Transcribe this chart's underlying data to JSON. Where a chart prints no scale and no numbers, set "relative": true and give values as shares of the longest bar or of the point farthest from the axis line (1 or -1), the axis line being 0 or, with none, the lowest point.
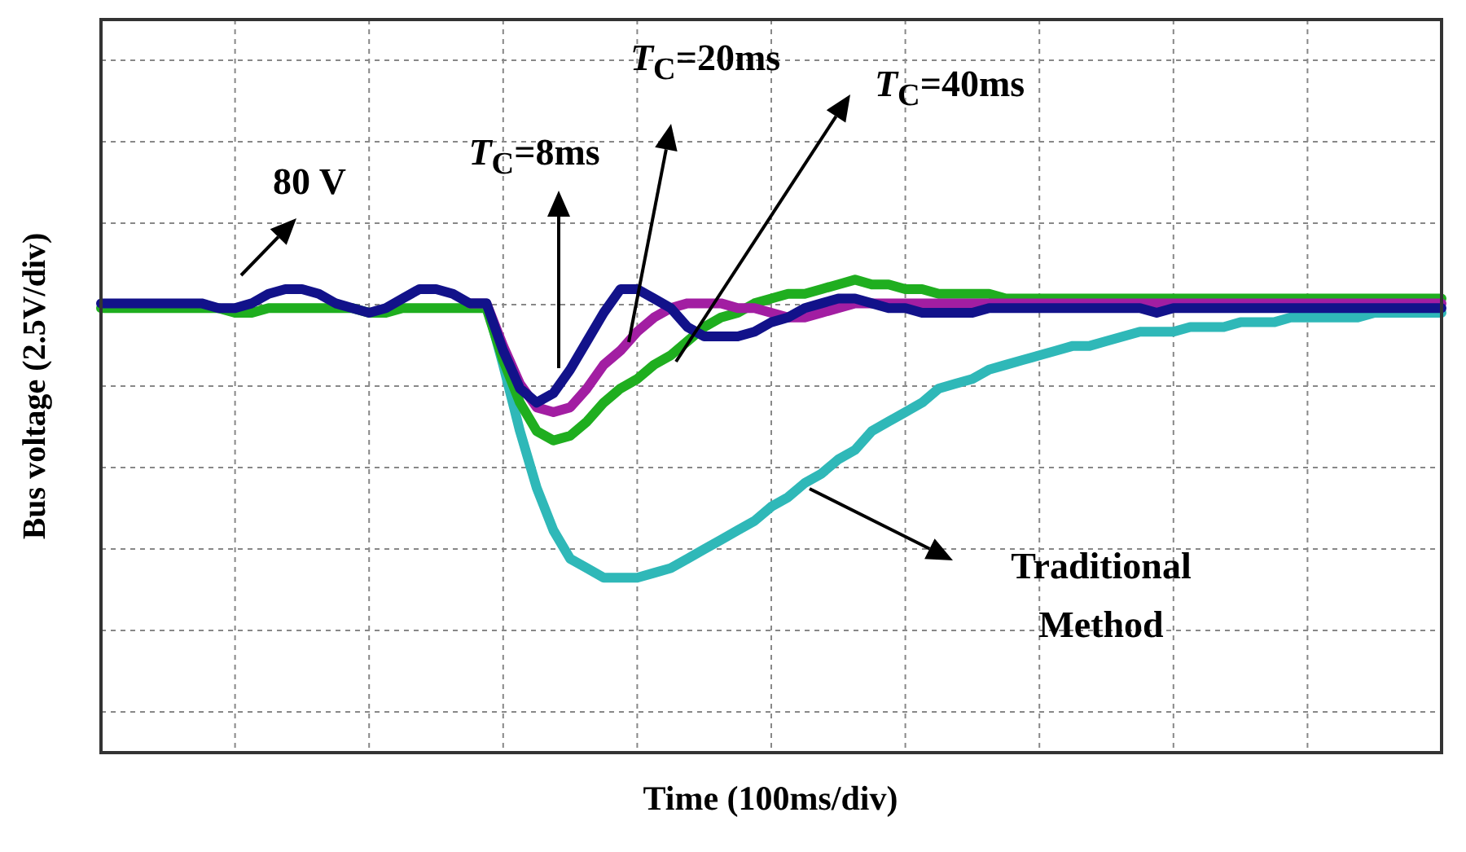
{
  "chart_data": {
    "type": "line",
    "relative": true,
    "grid": true,
    "legend": false,
    "tick_labels": false,
    "line_style": "solid",
    "marker": "none",
    "xlabel": "Time (100ms/div)",
    "ylabel": "Bus voltage (2.5V/div)",
    "categories": [
      null,
      null,
      null,
      null,
      null,
      null,
      null,
      null,
      null,
      null,
      null,
      null,
      null,
      null,
      null,
      null,
      null,
      null,
      null,
      null,
      null,
      null,
      null,
      null,
      null,
      null,
      null,
      null,
      null,
      null,
      null,
      null,
      null,
      null,
      null,
      null,
      null,
      null,
      null,
      null,
      null,
      null,
      null,
      null,
      null,
      null,
      null,
      null,
      null,
      null,
      null,
      null,
      null,
      null,
      null,
      null,
      null,
      null,
      null,
      null,
      null,
      null,
      null,
      null,
      null,
      null,
      null,
      null,
      null,
      null,
      null,
      null,
      null,
      null,
      null,
      null,
      null,
      null,
      null,
      null,
      null
    ],
    "series": [
      {
        "color": "#12128a",
        "values": [
          0.95,
          0.95,
          0.95,
          0.95,
          0.95,
          0.95,
          0.95,
          0.94,
          0.94,
          0.95,
          0.97,
          0.98,
          0.98,
          0.97,
          0.95,
          0.94,
          0.93,
          0.94,
          0.96,
          0.98,
          0.98,
          0.97,
          0.95,
          0.95,
          0.85,
          0.77,
          0.74,
          0.76,
          0.81,
          0.87,
          0.93,
          0.98,
          0.98,
          0.96,
          0.94,
          0.9,
          0.88,
          0.88,
          0.88,
          0.89,
          0.91,
          0.92,
          0.94,
          0.95,
          0.96,
          0.96,
          0.95,
          0.94,
          0.94,
          0.93,
          0.93,
          0.93,
          0.93,
          0.94,
          0.94,
          0.94,
          0.94,
          0.94,
          0.94,
          0.94,
          0.94,
          0.94,
          0.94,
          0.93,
          0.94,
          0.94,
          0.94,
          0.94,
          0.94,
          0.94,
          0.94,
          0.94,
          0.94,
          0.94,
          0.94,
          0.94,
          0.94,
          0.94,
          0.94,
          0.94,
          0.94
        ]
      },
      {
        "color": "#a21ea2",
        "values": [
          null,
          null,
          null,
          null,
          null,
          null,
          null,
          null,
          null,
          null,
          null,
          null,
          null,
          null,
          null,
          null,
          null,
          null,
          null,
          null,
          null,
          null,
          0.95,
          0.95,
          0.86,
          0.78,
          0.73,
          0.72,
          0.73,
          0.77,
          0.82,
          0.85,
          0.89,
          0.92,
          0.94,
          0.95,
          0.95,
          0.95,
          0.94,
          0.94,
          0.93,
          0.92,
          0.92,
          0.93,
          0.94,
          0.95,
          0.95,
          0.95,
          0.95,
          0.95,
          0.95,
          0.95,
          0.95,
          0.95,
          0.95,
          0.95,
          0.95,
          0.95,
          0.95,
          0.95,
          0.95,
          0.95,
          0.95,
          0.95,
          0.95,
          0.95,
          0.95,
          0.95,
          0.95,
          0.95,
          0.95,
          0.95,
          0.95,
          0.95,
          0.95,
          0.95,
          0.95,
          0.95,
          0.95,
          0.95,
          0.95
        ]
      },
      {
        "color": "#1fae1f",
        "values": [
          0.94,
          0.94,
          0.94,
          0.94,
          0.94,
          0.94,
          0.94,
          0.94,
          0.93,
          0.93,
          0.94,
          0.94,
          0.94,
          0.94,
          0.94,
          0.94,
          0.93,
          0.93,
          0.94,
          0.94,
          0.94,
          0.94,
          0.94,
          0.94,
          0.83,
          0.74,
          0.68,
          0.66,
          0.67,
          0.7,
          0.74,
          0.77,
          0.79,
          0.82,
          0.84,
          0.87,
          0.9,
          0.92,
          0.93,
          0.95,
          0.96,
          0.97,
          0.97,
          0.98,
          0.99,
          1.0,
          0.99,
          0.99,
          0.98,
          0.98,
          0.97,
          0.97,
          0.97,
          0.97,
          0.96,
          0.96,
          0.96,
          0.96,
          0.96,
          0.96,
          0.96,
          0.96,
          0.96,
          0.96,
          0.96,
          0.96,
          0.96,
          0.96,
          0.96,
          0.96,
          0.96,
          0.96,
          0.96,
          0.96,
          0.96,
          0.96,
          0.96,
          0.96,
          0.96,
          0.96,
          0.96
        ]
      },
      {
        "color": "#2fb8b8",
        "values": [
          null,
          null,
          null,
          null,
          null,
          null,
          null,
          null,
          null,
          null,
          null,
          null,
          null,
          null,
          null,
          null,
          null,
          null,
          null,
          null,
          null,
          null,
          0.95,
          0.95,
          0.82,
          0.68,
          0.56,
          0.47,
          0.41,
          0.39,
          0.37,
          0.37,
          0.37,
          0.38,
          0.39,
          0.41,
          0.43,
          0.45,
          0.47,
          0.49,
          0.52,
          0.54,
          0.57,
          0.59,
          0.62,
          0.64,
          0.68,
          0.7,
          0.72,
          0.74,
          0.77,
          0.78,
          0.79,
          0.81,
          0.82,
          0.83,
          0.84,
          0.85,
          0.86,
          0.86,
          0.87,
          0.88,
          0.89,
          0.89,
          0.89,
          0.9,
          0.9,
          0.9,
          0.91,
          0.91,
          0.91,
          0.92,
          0.92,
          0.92,
          0.92,
          0.92,
          0.93,
          0.93,
          0.93,
          0.93,
          0.93
        ]
      }
    ],
    "annotations": [
      "80 V",
      "T$_{C}$=8ms",
      "T$_{C}$=20ms",
      "T$_{C}$=40ms",
      "Traditional Method"
    ]
  }
}
